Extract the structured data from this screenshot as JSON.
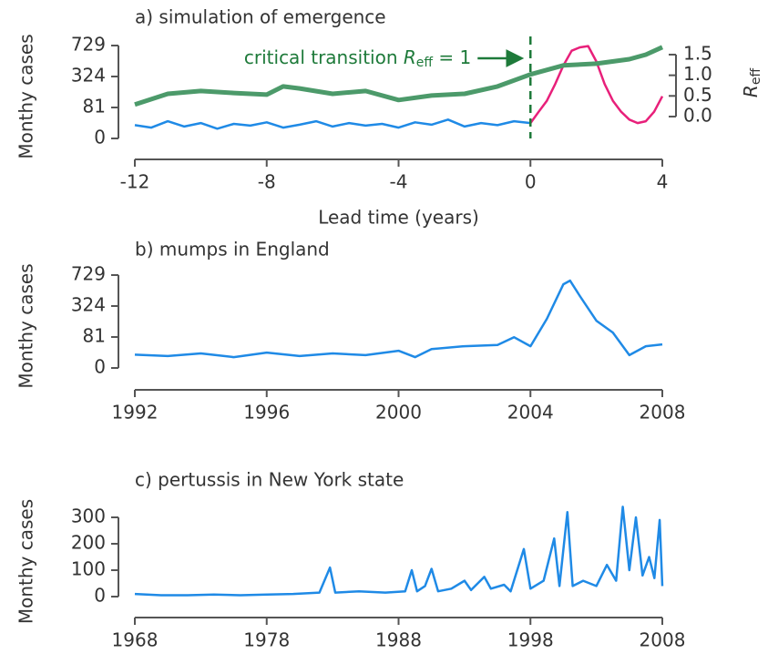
{
  "chart_data": [
    {
      "type": "line",
      "title": "a) simulation of emergence",
      "xlabel": "Lead time (years)",
      "ylabel": "Monthy cases",
      "y2label": {
        "symbol": "R",
        "subscript": "eff"
      },
      "annotation": {
        "text": "critical transition ",
        "symbol": "R",
        "subscript": "eff",
        "suffix": " = 1",
        "x": 0,
        "color": "#1e7a3a"
      },
      "yscale": "sqrt",
      "xlim": [
        -12,
        4
      ],
      "xticks": [
        -12,
        -8,
        -4,
        0,
        4
      ],
      "ylim": [
        0,
        729
      ],
      "yticks": [
        0,
        81,
        324,
        729
      ],
      "y2lim": [
        -0.53,
        1.72
      ],
      "y2ticks": [
        {
          "value": 0,
          "label": "0.0"
        },
        {
          "value": 0.5,
          "label": "0.5"
        },
        {
          "value": 1,
          "label": "1.0"
        },
        {
          "value": 1.5,
          "label": "1.5"
        }
      ],
      "series": [
        {
          "color": "#1f8ae6",
          "x": [
            -12,
            -11.5,
            -11,
            -10.5,
            -10,
            -9.5,
            -9,
            -8.5,
            -8,
            -7.5,
            -7,
            -6.5,
            -6,
            -5.5,
            -5,
            -4.5,
            -4,
            -3.5,
            -3,
            -2.5,
            -2,
            -1.5,
            -1,
            -0.5,
            0
          ],
          "values": [
            15,
            10,
            25,
            12,
            20,
            8,
            18,
            14,
            22,
            10,
            16,
            25,
            12,
            20,
            14,
            18,
            10,
            22,
            16,
            30,
            12,
            20,
            15,
            25,
            20
          ]
        },
        {
          "color": "#e8207a",
          "x": [
            0,
            0.25,
            0.5,
            0.75,
            1,
            1.25,
            1.5,
            1.75,
            2,
            2.25,
            2.5,
            2.75,
            3,
            3.25,
            3.5,
            3.75,
            4
          ],
          "values": [
            20,
            60,
            120,
            250,
            450,
            650,
            700,
            720,
            500,
            250,
            120,
            60,
            30,
            20,
            25,
            60,
            150
          ]
        },
        {
          "color": "#4c9a6a",
          "axis": "y2",
          "x": [
            -12,
            -11,
            -10,
            -9,
            -8,
            -7.5,
            -7,
            -6,
            -5,
            -4,
            -3,
            -2,
            -1,
            0,
            1,
            2,
            3,
            3.5,
            4
          ],
          "values": [
            0.29,
            0.55,
            0.62,
            0.57,
            0.53,
            0.73,
            0.68,
            0.55,
            0.62,
            0.4,
            0.51,
            0.55,
            0.73,
            1.02,
            1.24,
            1.28,
            1.39,
            1.5,
            1.68
          ]
        }
      ]
    },
    {
      "type": "line",
      "title": "b) mumps in England",
      "ylabel": "Monthy cases",
      "yscale": "sqrt",
      "xlim": [
        1992,
        2008
      ],
      "xticks": [
        1992,
        1996,
        2000,
        2004,
        2008
      ],
      "ylim": [
        0,
        729
      ],
      "yticks": [
        0,
        81,
        324,
        729
      ],
      "series": [
        {
          "color": "#1f8ae6",
          "x": [
            1992,
            1993,
            1994,
            1995,
            1996,
            1997,
            1998,
            1999,
            2000,
            2000.5,
            2001,
            2002,
            2003,
            2003.5,
            2004,
            2004.5,
            2005,
            2005.2,
            2005.5,
            2006,
            2006.5,
            2007,
            2007.5,
            2008
          ],
          "values": [
            15,
            12,
            18,
            10,
            20,
            12,
            18,
            14,
            25,
            10,
            30,
            40,
            45,
            80,
            40,
            204,
            592,
            645,
            437,
            189,
            106,
            14,
            40,
            47
          ]
        }
      ]
    },
    {
      "type": "line",
      "title": "c) pertussis in New York state",
      "ylabel": "Monthy cases",
      "yscale": "linear",
      "xlim": [
        1968,
        2008
      ],
      "xticks": [
        1968,
        1978,
        1988,
        1998,
        2008
      ],
      "ylim": [
        0,
        300
      ],
      "yticks": [
        0,
        100,
        200,
        300
      ],
      "series": [
        {
          "color": "#1f8ae6",
          "x": [
            1968,
            1970,
            1972,
            1974,
            1976,
            1978,
            1980,
            1982,
            1982.8,
            1983.2,
            1985,
            1987,
            1988.5,
            1989,
            1989.4,
            1990,
            1990.5,
            1991,
            1992,
            1993,
            1993.5,
            1994.5,
            1995,
            1996,
            1996.5,
            1997.5,
            1998,
            1999,
            1999.8,
            2000.2,
            2000.8,
            2001.2,
            2002,
            2003,
            2003.8,
            2004.5,
            2005,
            2005.5,
            2006,
            2006.5,
            2007,
            2007.4,
            2007.8,
            2008
          ],
          "values": [
            10,
            5,
            5,
            8,
            5,
            8,
            10,
            15,
            110,
            15,
            20,
            15,
            20,
            100,
            20,
            40,
            105,
            20,
            30,
            60,
            25,
            75,
            30,
            45,
            20,
            180,
            30,
            60,
            220,
            40,
            320,
            40,
            60,
            40,
            120,
            60,
            340,
            100,
            300,
            80,
            150,
            70,
            290,
            40
          ]
        }
      ]
    }
  ]
}
